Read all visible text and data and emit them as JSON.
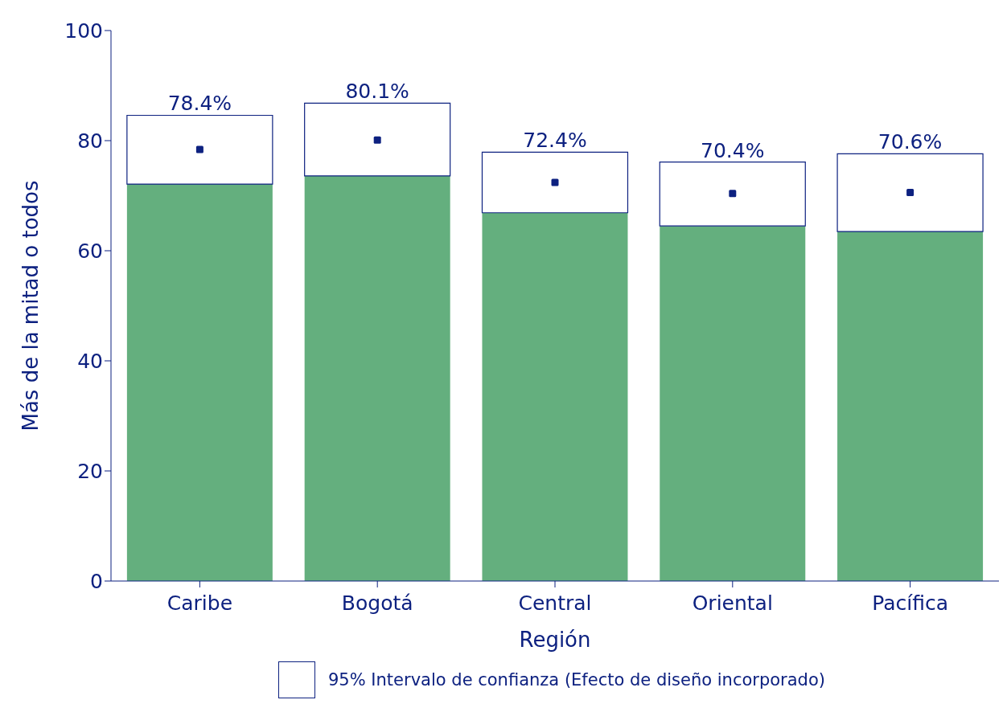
{
  "chart_data": {
    "type": "bar",
    "stacked": true,
    "xlabel": "Región",
    "ylabel": "Más de la mitad o todos",
    "categories": [
      "Caribe",
      "Bogotá",
      "Central",
      "Oriental",
      "Pacífica"
    ],
    "series": [
      {
        "color": "#64af7e",
        "values": [
          72.1,
          73.6,
          66.9,
          64.5,
          63.5
        ]
      },
      {
        "name": "95% Intervalo de confianza (Efecto de diseño incorporado)",
        "color": "#ffffff",
        "values": [
          12.5,
          13.2,
          11.0,
          11.6,
          14.1
        ]
      },
      {
        "type": "scatter",
        "color": "#0d2180",
        "x": [
          "Caribe",
          "Bogotá",
          "Central",
          "Oriental",
          "Pacífica"
        ],
        "values": [
          78.4,
          80.1,
          72.4,
          70.4,
          70.6
        ],
        "value_labels": [
          "78.4%",
          "80.1%",
          "72.4%",
          "70.4%",
          "70.6%"
        ]
      }
    ],
    "ylim": [
      0,
      100
    ],
    "yticks": [
      0,
      20,
      40,
      60,
      80,
      100
    ],
    "grid": false,
    "legend": "bottom",
    "marker": "square"
  }
}
